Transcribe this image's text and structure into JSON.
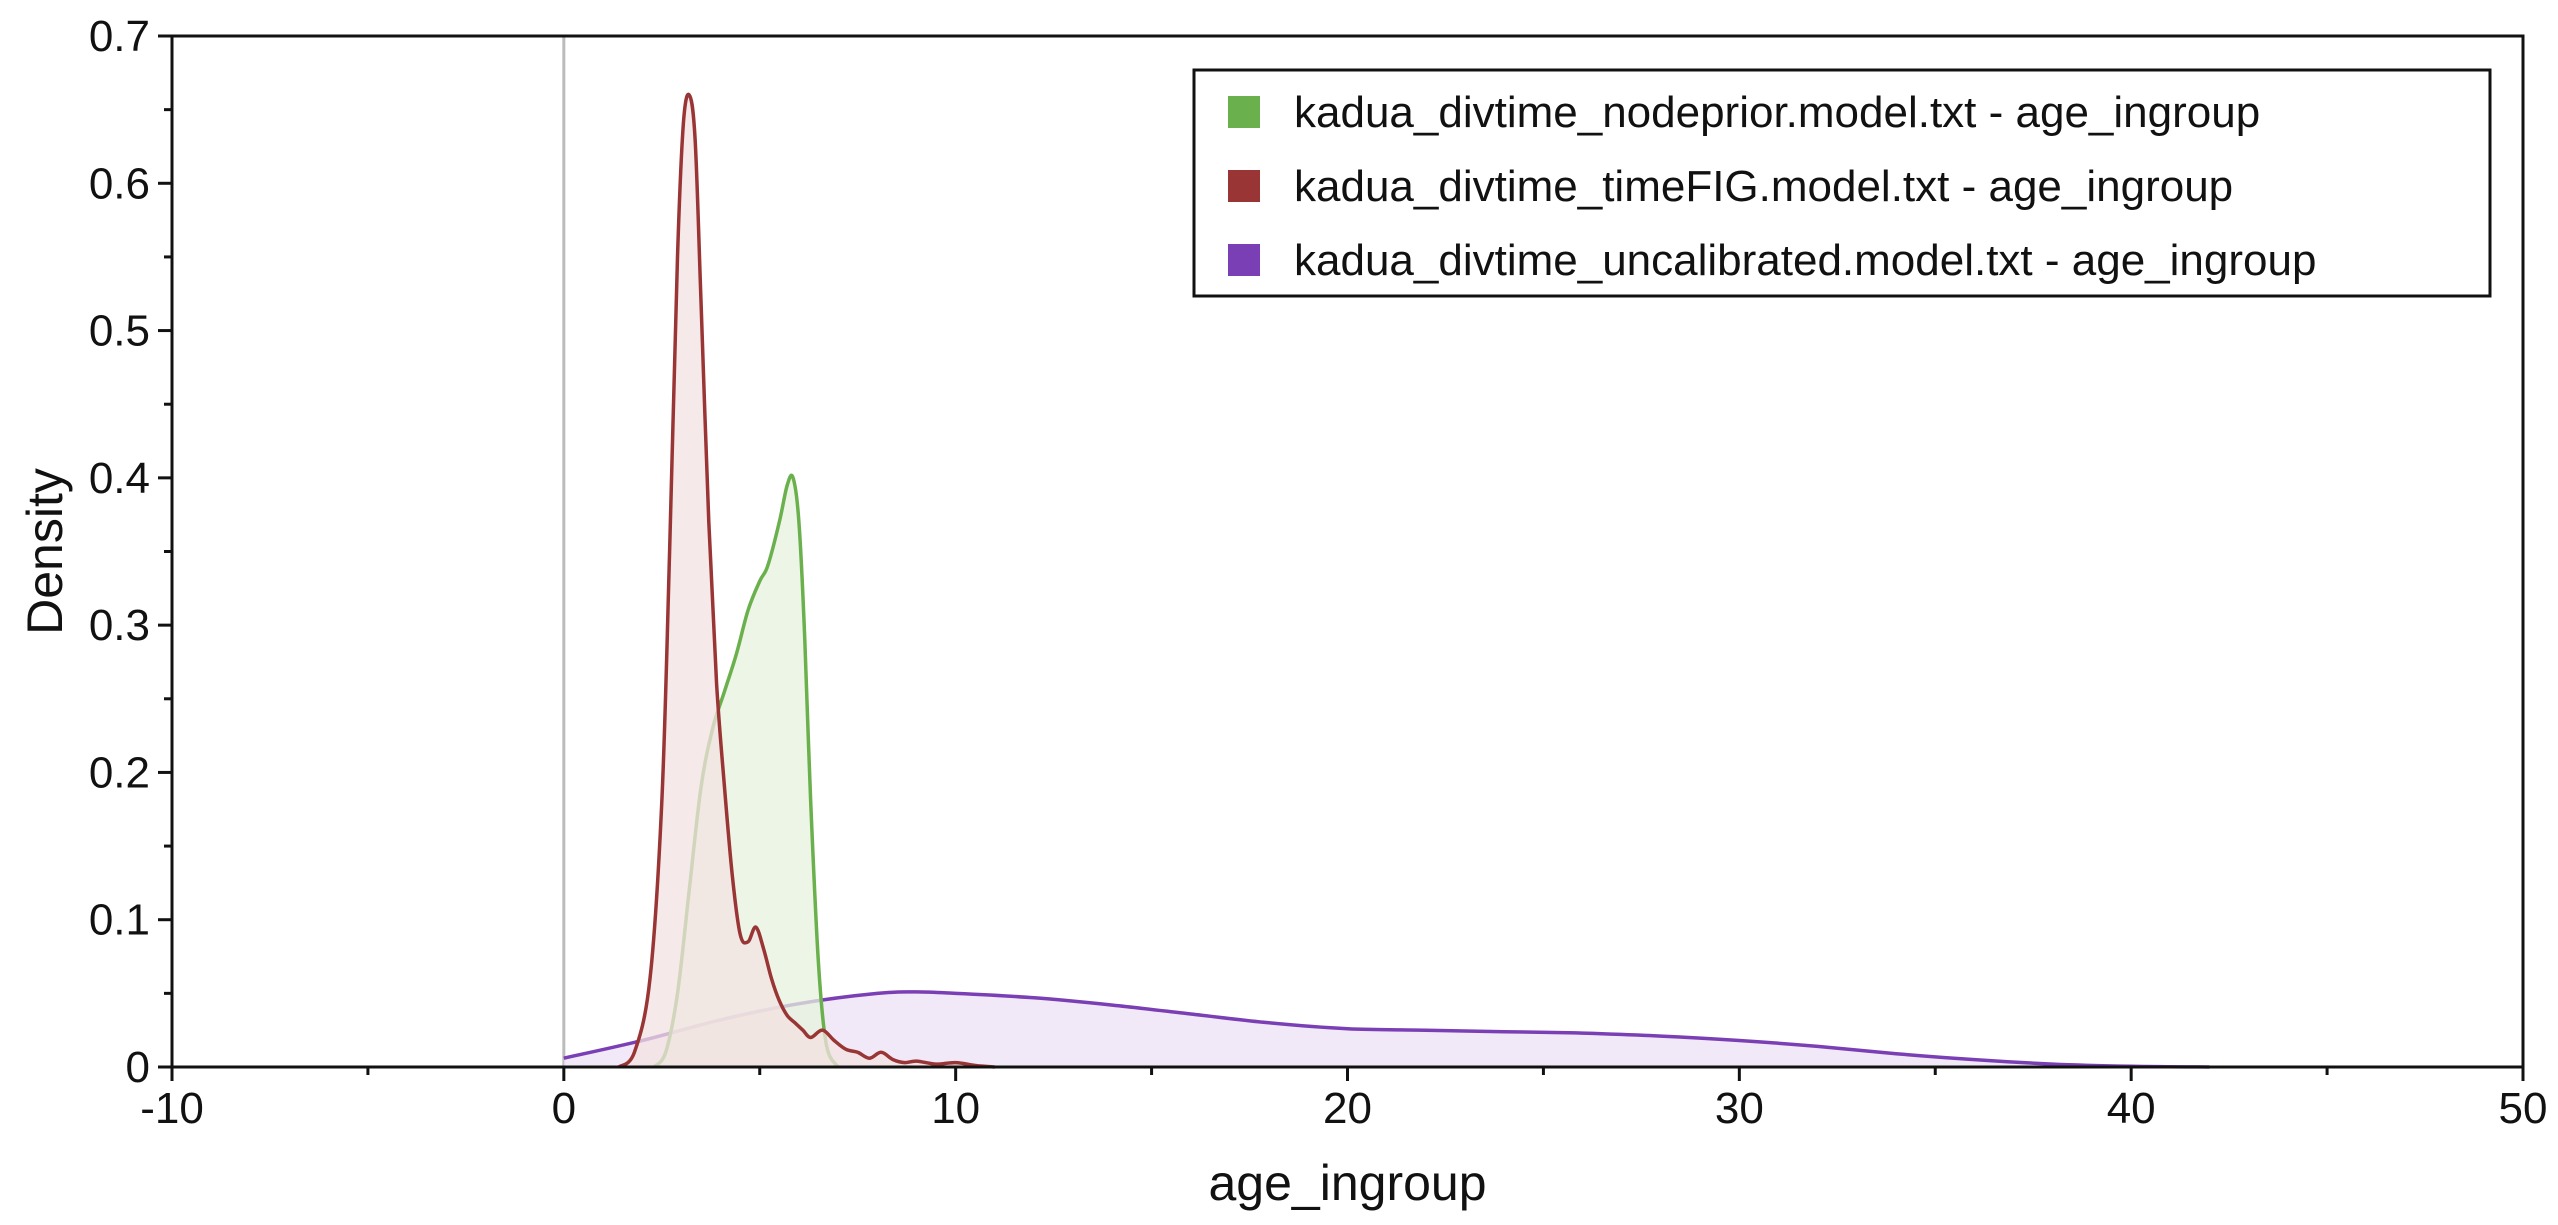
{
  "chart_data": {
    "type": "area",
    "title": "",
    "xlabel": "age_ingroup",
    "ylabel": "Density",
    "xlim": [
      -10,
      50
    ],
    "ylim": [
      0,
      0.7
    ],
    "x_ticks": [
      -10,
      0,
      10,
      20,
      30,
      40,
      50
    ],
    "x_tick_labels": [
      "-10",
      "0",
      "10",
      "20",
      "30",
      "40",
      "50"
    ],
    "x_minor_step": 5,
    "y_ticks": [
      0,
      0.1,
      0.2,
      0.3,
      0.4,
      0.5,
      0.6,
      0.7
    ],
    "y_tick_labels": [
      "0",
      "0.1",
      "0.2",
      "0.3",
      "0.4",
      "0.5",
      "0.6",
      "0.7"
    ],
    "y_minor_step": 0.05,
    "reference_line_x": 0,
    "grid": false,
    "legend_position": "top-right",
    "series": [
      {
        "name": "kadua_divtime_uncalibrated.model.txt - age_ingroup",
        "color": "#7b3fb5",
        "fill": "#ece2f4",
        "x": [
          0,
          2,
          4,
          6,
          8,
          9,
          10,
          12,
          14,
          16,
          18,
          20,
          22,
          24,
          26,
          28,
          30,
          32,
          34,
          36,
          38,
          40,
          42
        ],
        "y": [
          0.006,
          0.018,
          0.032,
          0.043,
          0.05,
          0.051,
          0.05,
          0.047,
          0.042,
          0.036,
          0.03,
          0.026,
          0.025,
          0.024,
          0.023,
          0.021,
          0.018,
          0.014,
          0.009,
          0.005,
          0.002,
          0.0005,
          0
        ]
      },
      {
        "name": "kadua_divtime_nodeprior.model.txt - age_ingroup",
        "color": "#6ab04c",
        "fill": "#e6f2de",
        "x": [
          2.3,
          2.6,
          2.9,
          3.2,
          3.5,
          3.8,
          4.1,
          4.4,
          4.7,
          5.0,
          5.2,
          5.5,
          5.7,
          5.85,
          6.0,
          6.15,
          6.3,
          6.5,
          6.7,
          7.0
        ],
        "y": [
          0,
          0.01,
          0.05,
          0.12,
          0.19,
          0.23,
          0.255,
          0.28,
          0.31,
          0.33,
          0.34,
          0.37,
          0.395,
          0.4,
          0.37,
          0.29,
          0.18,
          0.07,
          0.015,
          0
        ]
      },
      {
        "name": "kadua_divtime_timeFIG.model.txt - age_ingroup",
        "color": "#993535",
        "fill": "#f3e2e2",
        "x": [
          1.4,
          1.8,
          2.2,
          2.5,
          2.7,
          2.9,
          3.05,
          3.2,
          3.35,
          3.5,
          3.7,
          3.9,
          4.1,
          4.3,
          4.5,
          4.7,
          4.9,
          5.1,
          5.3,
          5.5,
          5.7,
          5.9,
          6.1,
          6.3,
          6.6,
          6.9,
          7.2,
          7.5,
          7.8,
          8.1,
          8.4,
          8.7,
          9.0,
          9.5,
          10.0,
          10.5,
          11.0
        ],
        "y": [
          0,
          0.01,
          0.06,
          0.18,
          0.35,
          0.55,
          0.64,
          0.66,
          0.63,
          0.52,
          0.37,
          0.26,
          0.19,
          0.13,
          0.09,
          0.085,
          0.095,
          0.08,
          0.06,
          0.045,
          0.035,
          0.03,
          0.025,
          0.02,
          0.025,
          0.018,
          0.012,
          0.01,
          0.006,
          0.01,
          0.005,
          0.003,
          0.004,
          0.002,
          0.003,
          0.001,
          0
        ]
      }
    ],
    "legend_order": [
      1,
      2,
      0
    ]
  }
}
